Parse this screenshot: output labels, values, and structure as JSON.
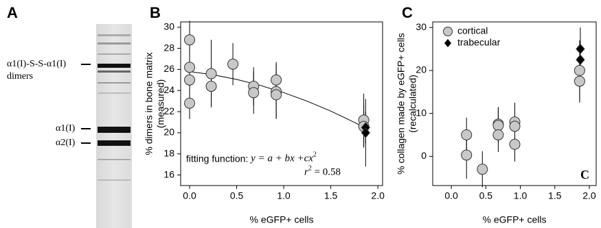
{
  "panel_a": {
    "letter": "A",
    "labels": [
      "α1(I)-S-S-α1(I)",
      "dimers",
      "α1(I)",
      "α2(I)"
    ]
  },
  "chart_data": [
    {
      "type": "scatter",
      "panel_label": "B",
      "xlabel": "% eGFP+ cells",
      "ylabel": [
        "% dimers in bone matrix",
        "(measured)"
      ],
      "xlim": [
        -0.095,
        2.05
      ],
      "ylim": [
        15,
        30.5
      ],
      "xticks": [
        {
          "value": 0,
          "label": "0.0"
        },
        0.5,
        {
          "value": 1,
          "label": "1.0"
        },
        1.5,
        {
          "value": 2,
          "label": "2.0"
        }
      ],
      "yticks": [
        16,
        18,
        20,
        22,
        24,
        26,
        28,
        30
      ],
      "series": [
        {
          "color": "#c8c8c8",
          "marker": "circle",
          "x": [
            0,
            0,
            0,
            0,
            0.23,
            0.23,
            0.46,
            0.68,
            0.68,
            0.92,
            0.92,
            0.92,
            1.85,
            1.85
          ],
          "values": [
            28.8,
            26.2,
            25.0,
            22.8,
            25.6,
            24.4,
            26.5,
            24.4,
            23.8,
            25.0,
            23.9,
            23.6,
            21.2,
            20.6
          ],
          "errors": [
            1.8,
            2.2,
            2.0,
            1.5,
            3.2,
            1.8,
            2.0,
            1.8,
            2.0,
            1.7,
            2.6,
            2.2,
            2.5,
            2.0
          ]
        },
        {
          "color": "#000000",
          "marker": "diamond",
          "x": [
            1.87,
            1.87
          ],
          "values": [
            20.5,
            20.0
          ],
          "errors": [
            1.5,
            3.2
          ]
        }
      ],
      "fit": {
        "x": [
          0,
          0.25,
          0.5,
          0.75,
          1.0,
          1.25,
          1.5,
          1.75,
          1.9
        ],
        "y": [
          25.8,
          25.49,
          25.05,
          24.49,
          23.8,
          22.99,
          22.05,
          20.99,
          20.29
        ]
      },
      "annotation": {
        "prefix": "fitting function: ",
        "formula": "y = a + bx +cx",
        "exp": "2",
        "r": "r",
        "r_exp": "2",
        "r_value": " = 0.58"
      }
    },
    {
      "type": "scatter",
      "panel_label": "C",
      "corner_label": "C",
      "xlabel": "% eGFP+ cells",
      "ylabel": [
        "% collagen made by eGFP+ cells",
        "(recalculated)"
      ],
      "xlim": [
        -0.27,
        2.1
      ],
      "ylim": [
        -6.8,
        31.3
      ],
      "xticks": [
        {
          "value": 0,
          "label": "0.0"
        },
        0.5,
        {
          "value": 1,
          "label": "1.0"
        },
        1.5,
        {
          "value": 2,
          "label": "2.0"
        }
      ],
      "yticks": [
        0,
        10,
        20,
        30
      ],
      "legend": "upper left",
      "series": [
        {
          "name": "cortical",
          "color": "#c8c8c8",
          "marker": "circle",
          "x": [
            0.22,
            0.22,
            0.45,
            0.68,
            0.68,
            0.68,
            0.92,
            0.92,
            0.92,
            1.86,
            1.86
          ],
          "values": [
            5.0,
            0.3,
            -3.0,
            7.5,
            7.2,
            5.0,
            8.0,
            7.0,
            2.8,
            20.0,
            17.5
          ],
          "errors": [
            4.0,
            5.5,
            4.2,
            4.0,
            4.0,
            4.0,
            4.5,
            4.0,
            4.0,
            7.0,
            5.0
          ]
        },
        {
          "name": "trabecular",
          "color": "#000000",
          "marker": "diamond",
          "x": [
            1.87,
            1.87
          ],
          "values": [
            25.0,
            22.5
          ],
          "errors": [
            5.0,
            4.0
          ]
        }
      ]
    }
  ]
}
